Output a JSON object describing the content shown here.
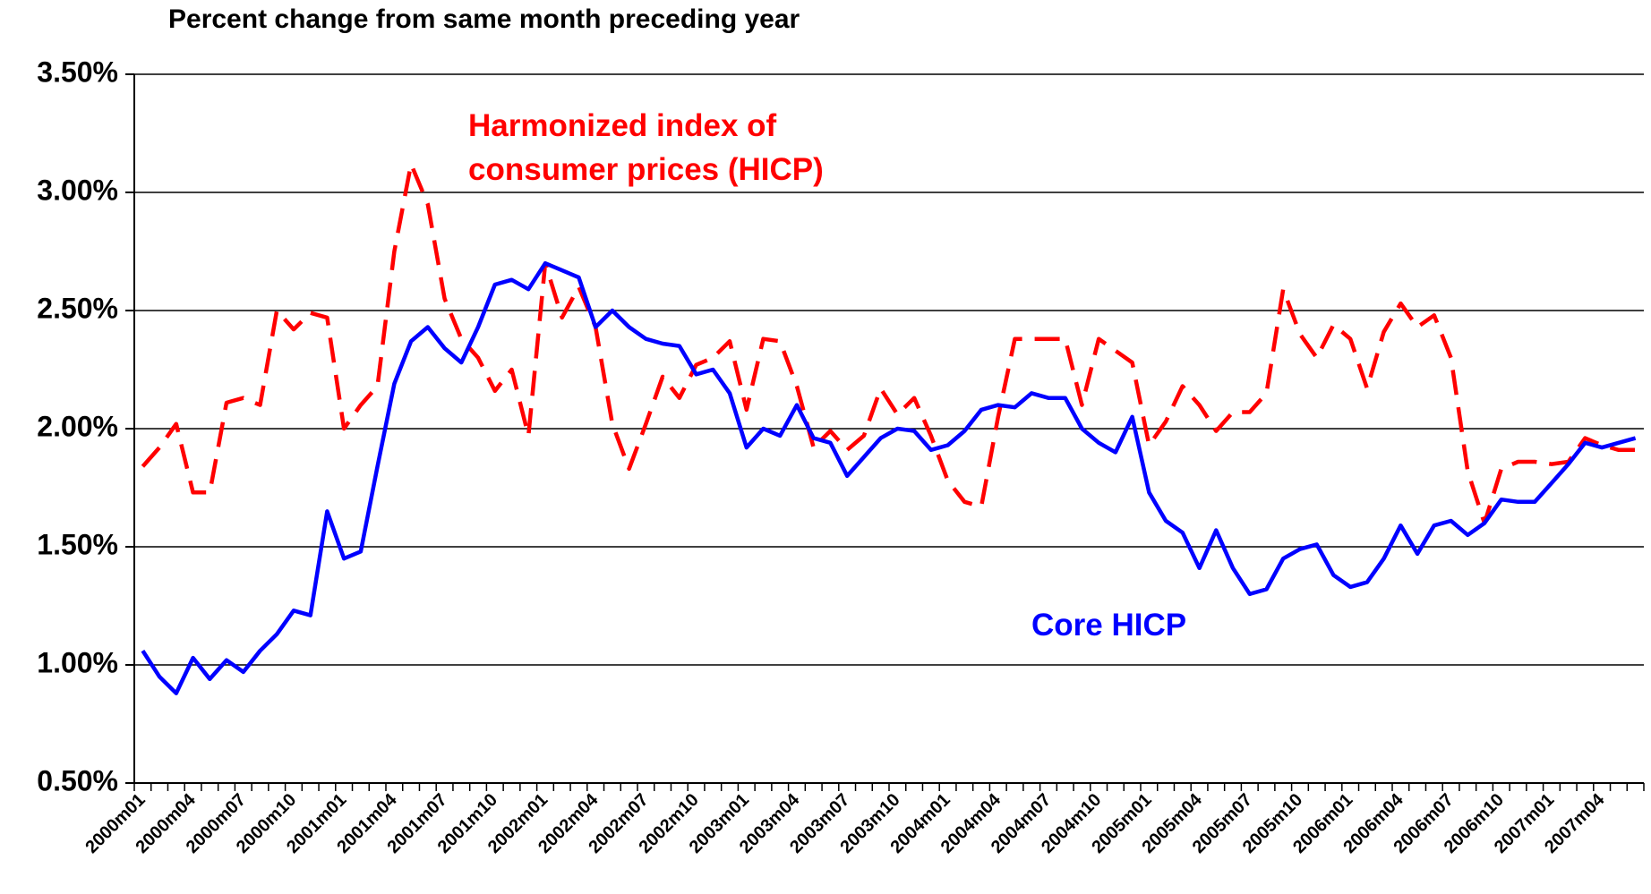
{
  "chart_data": {
    "type": "line",
    "title": "Percent change from same month preceding year",
    "categories": [
      "2000m01",
      null,
      null,
      "2000m04",
      null,
      null,
      "2000m07",
      null,
      null,
      "2000m10",
      null,
      null,
      "2001m01",
      null,
      null,
      "2001m04",
      null,
      null,
      "2001m07",
      null,
      null,
      "2001m10",
      null,
      null,
      "2002m01",
      null,
      null,
      "2002m04",
      null,
      null,
      "2002m07",
      null,
      null,
      "2002m10",
      null,
      null,
      "2003m01",
      null,
      null,
      "2003m04",
      null,
      null,
      "2003m07",
      null,
      null,
      "2003m10",
      null,
      null,
      "2004m01",
      null,
      null,
      "2004m04",
      null,
      null,
      "2004m07",
      null,
      null,
      "2004m10",
      null,
      null,
      "2005m01",
      null,
      null,
      "2005m04",
      null,
      null,
      "2005m07",
      null,
      null,
      "2005m10",
      null,
      null,
      "2006m01",
      null,
      null,
      "2006m04",
      null,
      null,
      "2006m07",
      null,
      null,
      "2006m10",
      null,
      null,
      "2007m01",
      null,
      null,
      "2007m04",
      null,
      null
    ],
    "series": [
      {
        "name": "Harmonized index of consumer prices (HICP)",
        "color": "#ff0000",
        "dashed": true,
        "values": [
          1.84,
          1.92,
          2.02,
          1.73,
          1.73,
          2.11,
          2.13,
          2.1,
          2.5,
          2.42,
          2.49,
          2.47,
          2.0,
          2.1,
          2.18,
          2.75,
          3.12,
          2.95,
          2.55,
          2.38,
          2.3,
          2.16,
          2.25,
          1.97,
          2.7,
          2.47,
          2.6,
          2.43,
          2.02,
          1.83,
          2.02,
          2.22,
          2.13,
          2.27,
          2.3,
          2.37,
          2.08,
          2.38,
          2.37,
          2.18,
          1.92,
          1.99,
          1.91,
          1.97,
          2.17,
          2.06,
          2.13,
          1.97,
          1.78,
          1.69,
          1.67,
          2.05,
          2.38,
          2.38,
          2.38,
          2.38,
          2.1,
          2.38,
          2.33,
          2.28,
          1.93,
          2.03,
          2.18,
          2.1,
          1.99,
          2.07,
          2.07,
          2.15,
          2.59,
          2.4,
          2.3,
          2.44,
          2.38,
          2.17,
          2.41,
          2.53,
          2.43,
          2.48,
          2.3,
          1.82,
          1.6,
          1.83,
          1.86,
          1.86,
          1.85,
          1.86,
          1.96,
          1.93,
          1.91,
          1.91
        ]
      },
      {
        "name": "Core HICP",
        "color": "#0000ff",
        "dashed": false,
        "values": [
          1.06,
          0.95,
          0.88,
          1.03,
          0.94,
          1.02,
          0.97,
          1.06,
          1.13,
          1.23,
          1.21,
          1.65,
          1.45,
          1.48,
          1.84,
          2.19,
          2.37,
          2.43,
          2.34,
          2.28,
          2.43,
          2.61,
          2.63,
          2.59,
          2.7,
          2.67,
          2.64,
          2.43,
          2.5,
          2.43,
          2.38,
          2.36,
          2.35,
          2.23,
          2.25,
          2.15,
          1.92,
          2.0,
          1.97,
          2.1,
          1.96,
          1.94,
          1.8,
          1.88,
          1.96,
          2.0,
          1.99,
          1.91,
          1.93,
          1.99,
          2.08,
          2.1,
          2.09,
          2.15,
          2.13,
          2.13,
          2.0,
          1.94,
          1.9,
          2.05,
          1.73,
          1.61,
          1.56,
          1.41,
          1.57,
          1.41,
          1.3,
          1.32,
          1.45,
          1.49,
          1.51,
          1.38,
          1.33,
          1.35,
          1.45,
          1.59,
          1.47,
          1.59,
          1.61,
          1.55,
          1.6,
          1.7,
          1.69,
          1.69,
          1.77,
          1.85,
          1.94,
          1.92,
          1.94,
          1.96
        ]
      }
    ],
    "ylim": [
      0.5,
      3.5
    ],
    "yticks": [
      {
        "value": 0.5,
        "label": "0.50%"
      },
      {
        "value": 1.0,
        "label": "1.00%"
      },
      {
        "value": 1.5,
        "label": "1.50%"
      },
      {
        "value": 2.0,
        "label": "2.00%"
      },
      {
        "value": 2.5,
        "label": "2.50%"
      },
      {
        "value": 3.0,
        "label": "3.00%"
      },
      {
        "value": 3.5,
        "label": "3.50%"
      }
    ],
    "grid": true
  }
}
